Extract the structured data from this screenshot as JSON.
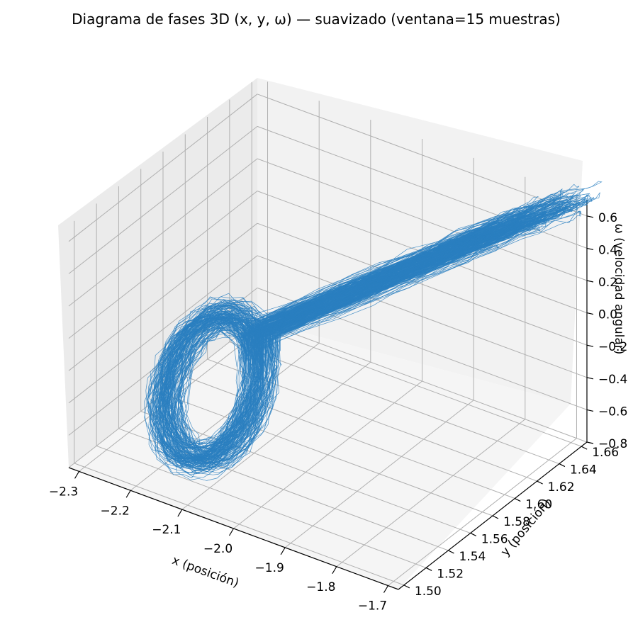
{
  "chart_data": {
    "type": "line",
    "projection": "3d",
    "title": "Diagrama de fases 3D (x, y, ω) — suavizado (ventana=15 muestras)",
    "xlabel": "x (posición)",
    "ylabel": "y (posición)",
    "zlabel": "ω (velocidad angular)",
    "xlim": [
      -2.32,
      -1.68
    ],
    "ylim": [
      1.495,
      1.665
    ],
    "zlim": [
      -0.8,
      0.7
    ],
    "xticks": [
      "−2.3",
      "−2.2",
      "−2.1",
      "−2.0",
      "−1.9",
      "−1.8",
      "−1.7"
    ],
    "xtick_values": [
      -2.3,
      -2.2,
      -2.1,
      -2.0,
      -1.9,
      -1.8,
      -1.7
    ],
    "yticks": [
      "1.50",
      "1.52",
      "1.54",
      "1.56",
      "1.58",
      "1.60",
      "1.62",
      "1.64",
      "1.66"
    ],
    "ytick_values": [
      1.5,
      1.52,
      1.54,
      1.56,
      1.58,
      1.6,
      1.62,
      1.64,
      1.66
    ],
    "zticks": [
      "−0.8",
      "−0.6",
      "−0.4",
      "−0.2",
      "0.0",
      "0.2",
      "0.4",
      "0.6"
    ],
    "ztick_values": [
      -0.8,
      -0.6,
      -0.4,
      -0.2,
      0.0,
      0.2,
      0.4,
      0.6
    ],
    "grid": true,
    "series": [
      {
        "color": "#2a7fc0",
        "description_points": [
          {
            "x": -2.25,
            "y": 1.53,
            "z": -0.55
          },
          {
            "x": -2.23,
            "y": 1.54,
            "z": -0.75
          },
          {
            "x": -2.15,
            "y": 1.55,
            "z": -0.78
          },
          {
            "x": -2.08,
            "y": 1.56,
            "z": -0.55
          },
          {
            "x": -2.12,
            "y": 1.57,
            "z": -0.2
          },
          {
            "x": -2.2,
            "y": 1.58,
            "z": -0.1
          },
          {
            "x": -2.1,
            "y": 1.6,
            "z": 0.1
          },
          {
            "x": -1.95,
            "y": 1.62,
            "z": 0.3
          },
          {
            "x": -1.8,
            "y": 1.65,
            "z": 0.6
          },
          {
            "x": -1.75,
            "y": 1.66,
            "z": 0.68
          }
        ]
      }
    ]
  }
}
